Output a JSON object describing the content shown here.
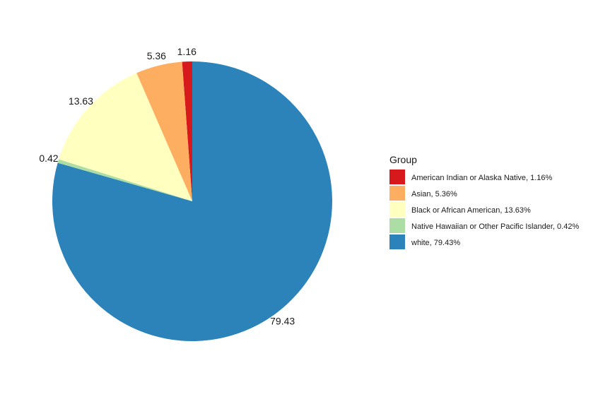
{
  "chart_data": {
    "type": "pie",
    "legend_title": "Group",
    "legend_position": "right",
    "start_angle_note": "clockwise from 12 o'clock",
    "slices": [
      {
        "label": "American Indian or Alaska Native",
        "value": 1.16,
        "value_text": "1.16",
        "legend_text": "American Indian or Alaska Native, 1.16%",
        "color": "#d7191c"
      },
      {
        "label": "Asian",
        "value": 5.36,
        "value_text": "5.36",
        "legend_text": "Asian, 5.36%",
        "color": "#fdae61"
      },
      {
        "label": "Black or African American",
        "value": 13.63,
        "value_text": "13.63",
        "legend_text": "Black or African American, 13.63%",
        "color": "#ffffbf"
      },
      {
        "label": "Native Hawaiian or Other Pacific Islander",
        "value": 0.42,
        "value_text": "0.42",
        "legend_text": "Native Hawaiian or Other Pacific Islander, 0.42%",
        "color": "#abdda4"
      },
      {
        "label": "white",
        "value": 79.43,
        "value_text": "79.43",
        "legend_text": "white, 79.43%",
        "color": "#2b83ba"
      }
    ]
  }
}
